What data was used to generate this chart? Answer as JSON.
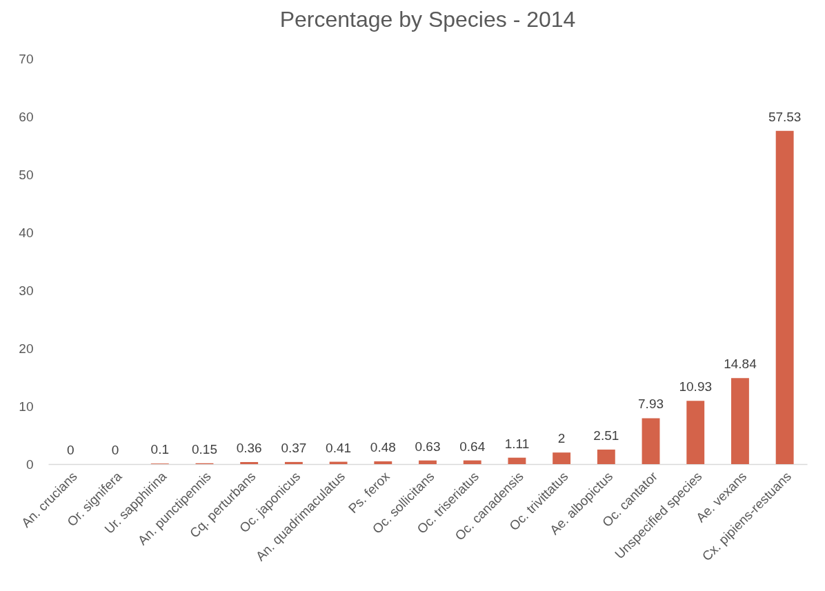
{
  "chart_data": {
    "type": "bar",
    "title": "Percentage by Species - 2014",
    "categories": [
      "An. crucians",
      "Or. signifera",
      "Ur. sapphirina",
      "An. punctipennis",
      "Cq. perturbans",
      "Oc. japonicus",
      "An. quadrimaculatus",
      "Ps. ferox",
      "Oc. sollicitans",
      "Oc. triseriatus",
      "Oc. canadensis",
      "Oc. trivittatus",
      "Ae. albopictus",
      "Oc. cantator",
      "Unspecified species",
      "Ae. vexans",
      "Cx. pipiens-restuans"
    ],
    "values": [
      0,
      0,
      0.1,
      0.15,
      0.36,
      0.37,
      0.41,
      0.48,
      0.63,
      0.64,
      1.11,
      2,
      2.51,
      7.93,
      10.93,
      14.84,
      57.53
    ],
    "color": "#d4634a",
    "ylim": [
      0,
      70
    ],
    "yticks": [
      0,
      10,
      20,
      30,
      40,
      50,
      60,
      70
    ],
    "grid": false,
    "data_labels": true
  }
}
